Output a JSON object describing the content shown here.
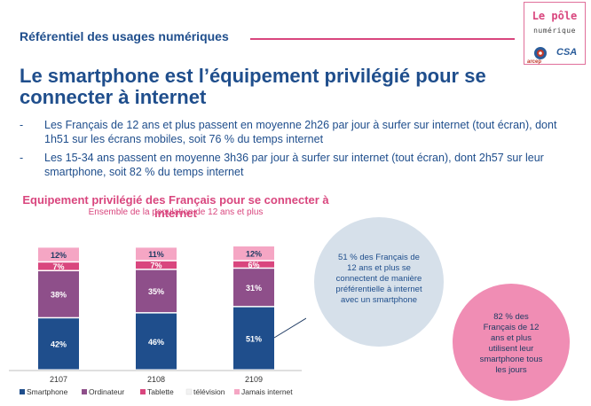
{
  "header": {
    "subtitle": "Référentiel des usages numériques",
    "logo_title": "Le pôle",
    "logo_subtitle": "numérique",
    "logo_arcep": "arcep",
    "logo_csa": "CSA"
  },
  "main_title": "Le smartphone est l’équipement privilégié pour se connecter à internet",
  "bullets": [
    "Les Français de 12 ans et plus passent en moyenne 2h26 par jour à surfer sur internet (tout écran), dont 1h51 sur les écrans mobiles, soit 76 % du temps internet",
    "Les 15-34 ans passent en moyenne 3h36 par jour à surfer sur internet (tout écran), dont 2h57 sur leur smartphone, soit 82 % du temps internet"
  ],
  "bullet_dash": "-",
  "chart_data": {
    "type": "bar",
    "stacked": true,
    "title": "Equipement privilégié des Français pour se connecter à internet",
    "subtitle": "Ensemble de la population de 12 ans et plus",
    "categories": [
      "2107",
      "2108",
      "2109"
    ],
    "series": [
      {
        "name": "Smartphone",
        "values": [
          42,
          46,
          51
        ],
        "color": "#1f4e8c"
      },
      {
        "name": "Ordinateur",
        "values": [
          38,
          35,
          31
        ],
        "color": "#8e4f8a"
      },
      {
        "name": "Tablette",
        "values": [
          7,
          7,
          6
        ],
        "color": "#d9467e"
      },
      {
        "name": "télévision",
        "values": [
          0,
          0,
          0
        ],
        "color": "#f2f2f2"
      },
      {
        "name": "Jamais internet",
        "values": [
          12,
          11,
          12
        ],
        "color": "#f5a6c4"
      }
    ],
    "value_suffix": "%",
    "legend_position": "bottom",
    "grid": false
  },
  "callouts": {
    "circle1": "51 % des Français de 12 ans et plus se connectent de manière préférentielle à internet avec un smartphone",
    "circle2": "82 % des Français de 12 ans et plus utilisent leur smartphone tous les jours"
  }
}
